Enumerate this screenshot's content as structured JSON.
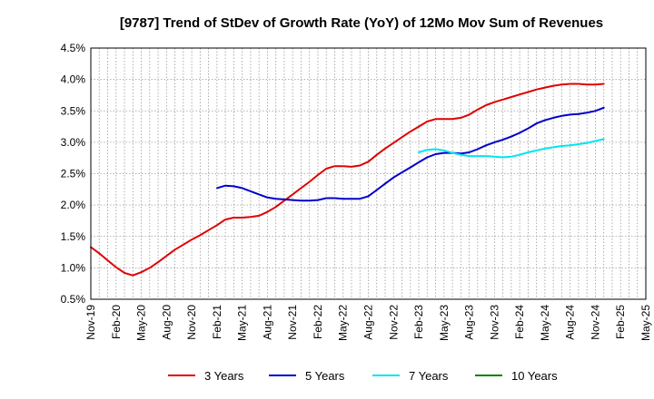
{
  "chart_data": {
    "type": "line",
    "title": "[9787]  Trend of StDev of Growth Rate (YoY) of 12Mo Mov Sum of Revenues",
    "xlabel": "",
    "ylabel": "",
    "ylim": [
      0.5,
      4.5
    ],
    "y_ticks": [
      "0.5%",
      "1.0%",
      "1.5%",
      "2.0%",
      "2.5%",
      "3.0%",
      "3.5%",
      "4.0%",
      "4.5%"
    ],
    "x_ticks": [
      "Nov-19",
      "Feb-20",
      "May-20",
      "Aug-20",
      "Nov-20",
      "Feb-21",
      "May-21",
      "Aug-21",
      "Nov-21",
      "Feb-22",
      "May-22",
      "Aug-22",
      "Nov-22",
      "Feb-23",
      "May-23",
      "Aug-23",
      "Nov-23",
      "Feb-24",
      "May-24",
      "Aug-24",
      "Nov-24",
      "Feb-25",
      "May-25"
    ],
    "x_range_months": [
      0,
      66
    ],
    "grid": true,
    "legend_position": "bottom",
    "series": [
      {
        "name": "3 Years",
        "color": "#e00000",
        "start_month": 0,
        "values": [
          1.33,
          1.23,
          1.12,
          1.01,
          0.92,
          0.88,
          0.93,
          1.0,
          1.09,
          1.19,
          1.29,
          1.37,
          1.45,
          1.52,
          1.6,
          1.68,
          1.77,
          1.8,
          1.8,
          1.81,
          1.83,
          1.89,
          1.97,
          2.07,
          2.17,
          2.27,
          2.37,
          2.48,
          2.58,
          2.62,
          2.62,
          2.61,
          2.63,
          2.69,
          2.8,
          2.9,
          2.99,
          3.08,
          3.17,
          3.25,
          3.33,
          3.37,
          3.37,
          3.37,
          3.39,
          3.44,
          3.52,
          3.59,
          3.64,
          3.68,
          3.72,
          3.76,
          3.8,
          3.84,
          3.87,
          3.9,
          3.92,
          3.93,
          3.93,
          3.92,
          3.92,
          3.93
        ]
      },
      {
        "name": "5 Years",
        "color": "#0000cc",
        "start_month": 15,
        "values": [
          2.27,
          2.31,
          2.3,
          2.27,
          2.22,
          2.17,
          2.12,
          2.1,
          2.09,
          2.08,
          2.07,
          2.07,
          2.08,
          2.11,
          2.11,
          2.1,
          2.1,
          2.1,
          2.14,
          2.24,
          2.34,
          2.44,
          2.52,
          2.6,
          2.68,
          2.76,
          2.81,
          2.83,
          2.83,
          2.82,
          2.84,
          2.89,
          2.95,
          3.0,
          3.04,
          3.09,
          3.15,
          3.22,
          3.3,
          3.35,
          3.39,
          3.42,
          3.44,
          3.45,
          3.47,
          3.5,
          3.55
        ]
      },
      {
        "name": "7 Years",
        "color": "#00e5ee",
        "start_month": 39,
        "values": [
          2.84,
          2.88,
          2.89,
          2.87,
          2.83,
          2.8,
          2.78,
          2.78,
          2.78,
          2.77,
          2.76,
          2.77,
          2.8,
          2.84,
          2.87,
          2.9,
          2.92,
          2.94,
          2.95,
          2.97,
          2.99,
          3.02,
          3.05
        ]
      },
      {
        "name": "10 Years",
        "color": "#008000",
        "start_month": 0,
        "values": []
      }
    ]
  }
}
